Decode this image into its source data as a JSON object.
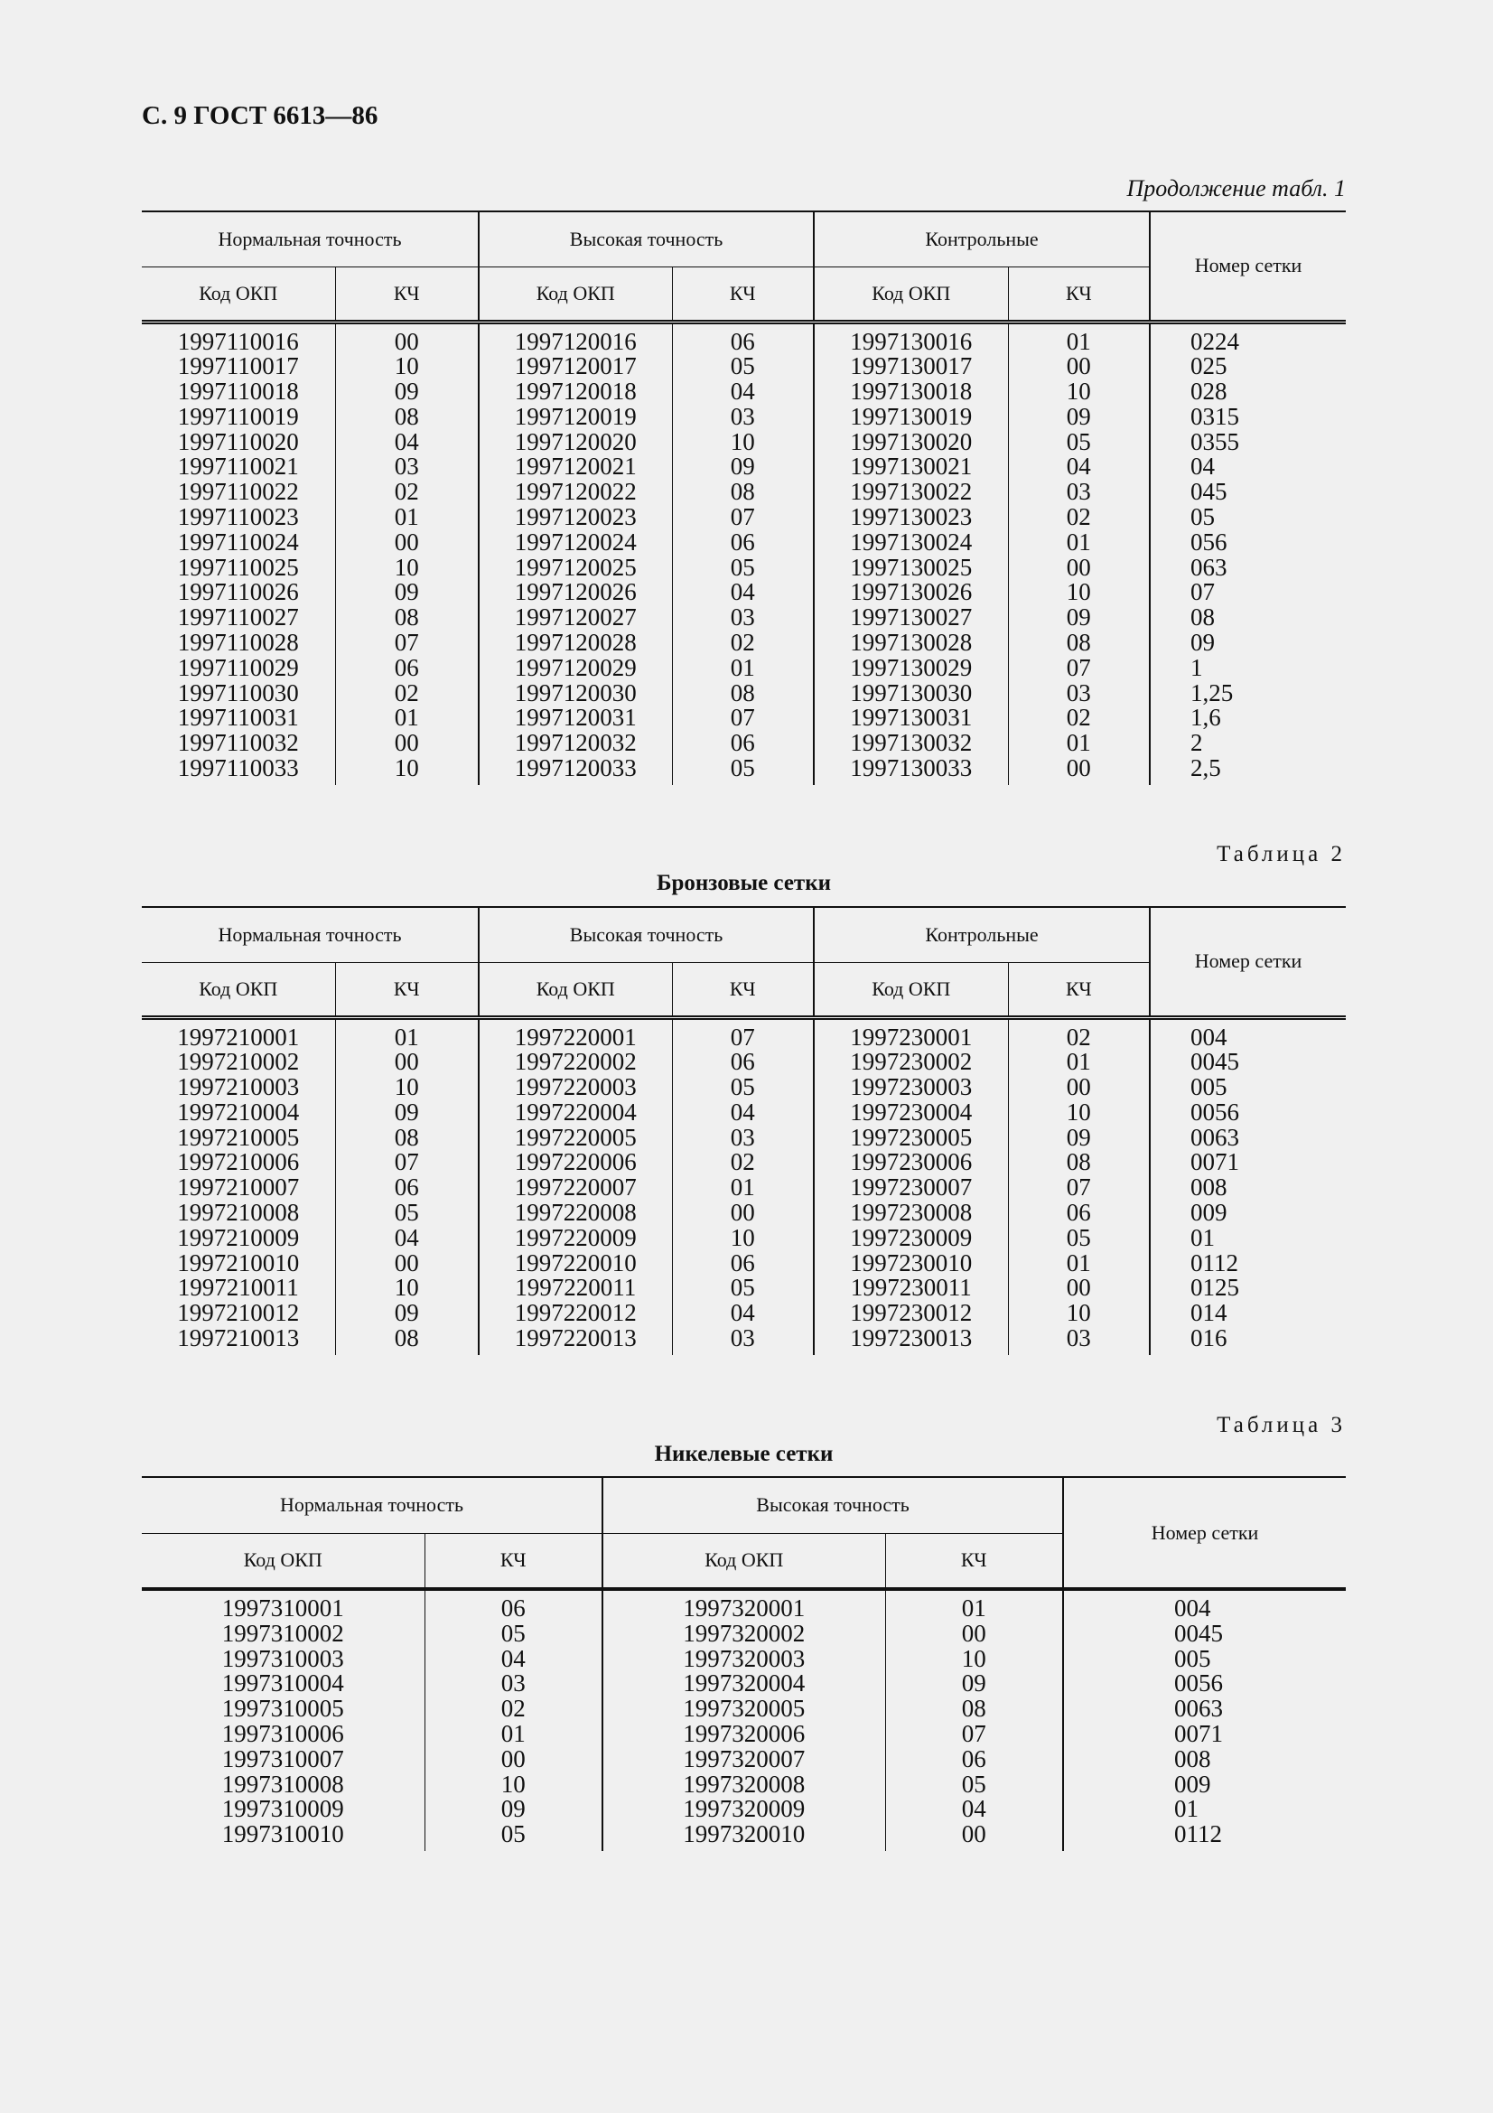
{
  "page_header": "С. 9 ГОСТ 6613—86",
  "continuation_label": "Продолжение табл. 1",
  "tables": [
    {
      "label": "",
      "title": "",
      "groups": [
        "Нормальная точность",
        "Высокая точность",
        "Контрольные"
      ],
      "sub_headers": [
        "Код ОКП",
        "КЧ"
      ],
      "number_header": "Номер сетки",
      "rows": [
        [
          "1997110016",
          "00",
          "1997120016",
          "06",
          "1997130016",
          "01",
          "0224"
        ],
        [
          "1997110017",
          "10",
          "1997120017",
          "05",
          "1997130017",
          "00",
          "025"
        ],
        [
          "1997110018",
          "09",
          "1997120018",
          "04",
          "1997130018",
          "10",
          "028"
        ],
        [
          "1997110019",
          "08",
          "1997120019",
          "03",
          "1997130019",
          "09",
          "0315"
        ],
        [
          "1997110020",
          "04",
          "1997120020",
          "10",
          "1997130020",
          "05",
          "0355"
        ],
        [
          "1997110021",
          "03",
          "1997120021",
          "09",
          "1997130021",
          "04",
          "04"
        ],
        [
          "1997110022",
          "02",
          "1997120022",
          "08",
          "1997130022",
          "03",
          "045"
        ],
        [
          "1997110023",
          "01",
          "1997120023",
          "07",
          "1997130023",
          "02",
          "05"
        ],
        [
          "1997110024",
          "00",
          "1997120024",
          "06",
          "1997130024",
          "01",
          "056"
        ],
        [
          "1997110025",
          "10",
          "1997120025",
          "05",
          "1997130025",
          "00",
          "063"
        ],
        [
          "1997110026",
          "09",
          "1997120026",
          "04",
          "1997130026",
          "10",
          "07"
        ],
        [
          "1997110027",
          "08",
          "1997120027",
          "03",
          "1997130027",
          "09",
          "08"
        ],
        [
          "1997110028",
          "07",
          "1997120028",
          "02",
          "1997130028",
          "08",
          "09"
        ],
        [
          "1997110029",
          "06",
          "1997120029",
          "01",
          "1997130029",
          "07",
          "1"
        ],
        [
          "1997110030",
          "02",
          "1997120030",
          "08",
          "1997130030",
          "03",
          "1,25"
        ],
        [
          "1997110031",
          "01",
          "1997120031",
          "07",
          "1997130031",
          "02",
          "1,6"
        ],
        [
          "1997110032",
          "00",
          "1997120032",
          "06",
          "1997130032",
          "01",
          "2"
        ],
        [
          "1997110033",
          "10",
          "1997120033",
          "05",
          "1997130033",
          "00",
          "2,5"
        ]
      ]
    },
    {
      "label": "Таблица 2",
      "title": "Бронзовые сетки",
      "groups": [
        "Нормальная точность",
        "Высокая точность",
        "Контрольные"
      ],
      "sub_headers": [
        "Код ОКП",
        "КЧ"
      ],
      "number_header": "Номер сетки",
      "rows": [
        [
          "1997210001",
          "01",
          "1997220001",
          "07",
          "1997230001",
          "02",
          "004"
        ],
        [
          "1997210002",
          "00",
          "1997220002",
          "06",
          "1997230002",
          "01",
          "0045"
        ],
        [
          "1997210003",
          "10",
          "1997220003",
          "05",
          "1997230003",
          "00",
          "005"
        ],
        [
          "1997210004",
          "09",
          "1997220004",
          "04",
          "1997230004",
          "10",
          "0056"
        ],
        [
          "1997210005",
          "08",
          "1997220005",
          "03",
          "1997230005",
          "09",
          "0063"
        ],
        [
          "1997210006",
          "07",
          "1997220006",
          "02",
          "1997230006",
          "08",
          "0071"
        ],
        [
          "1997210007",
          "06",
          "1997220007",
          "01",
          "1997230007",
          "07",
          "008"
        ],
        [
          "1997210008",
          "05",
          "1997220008",
          "00",
          "1997230008",
          "06",
          "009"
        ],
        [
          "1997210009",
          "04",
          "1997220009",
          "10",
          "1997230009",
          "05",
          "01"
        ],
        [
          "1997210010",
          "00",
          "1997220010",
          "06",
          "1997230010",
          "01",
          "0112"
        ],
        [
          "1997210011",
          "10",
          "1997220011",
          "05",
          "1997230011",
          "00",
          "0125"
        ],
        [
          "1997210012",
          "09",
          "1997220012",
          "04",
          "1997230012",
          "10",
          "014"
        ],
        [
          "1997210013",
          "08",
          "1997220013",
          "03",
          "1997230013",
          "03",
          "016"
        ]
      ]
    },
    {
      "label": "Таблица 3",
      "title": "Никелевые сетки",
      "groups": [
        "Нормальная точность",
        "Высокая точность"
      ],
      "sub_headers": [
        "Код ОКП",
        "КЧ"
      ],
      "number_header": "Номер сетки",
      "rows": [
        [
          "1997310001",
          "06",
          "1997320001",
          "01",
          "004"
        ],
        [
          "1997310002",
          "05",
          "1997320002",
          "00",
          "0045"
        ],
        [
          "1997310003",
          "04",
          "1997320003",
          "10",
          "005"
        ],
        [
          "1997310004",
          "03",
          "1997320004",
          "09",
          "0056"
        ],
        [
          "1997310005",
          "02",
          "1997320005",
          "08",
          "0063"
        ],
        [
          "1997310006",
          "01",
          "1997320006",
          "07",
          "0071"
        ],
        [
          "1997310007",
          "00",
          "1997320007",
          "06",
          "008"
        ],
        [
          "1997310008",
          "10",
          "1997320008",
          "05",
          "009"
        ],
        [
          "1997310009",
          "09",
          "1997320009",
          "04",
          "01"
        ],
        [
          "1997310010",
          "05",
          "1997320010",
          "00",
          "0112"
        ]
      ]
    }
  ]
}
